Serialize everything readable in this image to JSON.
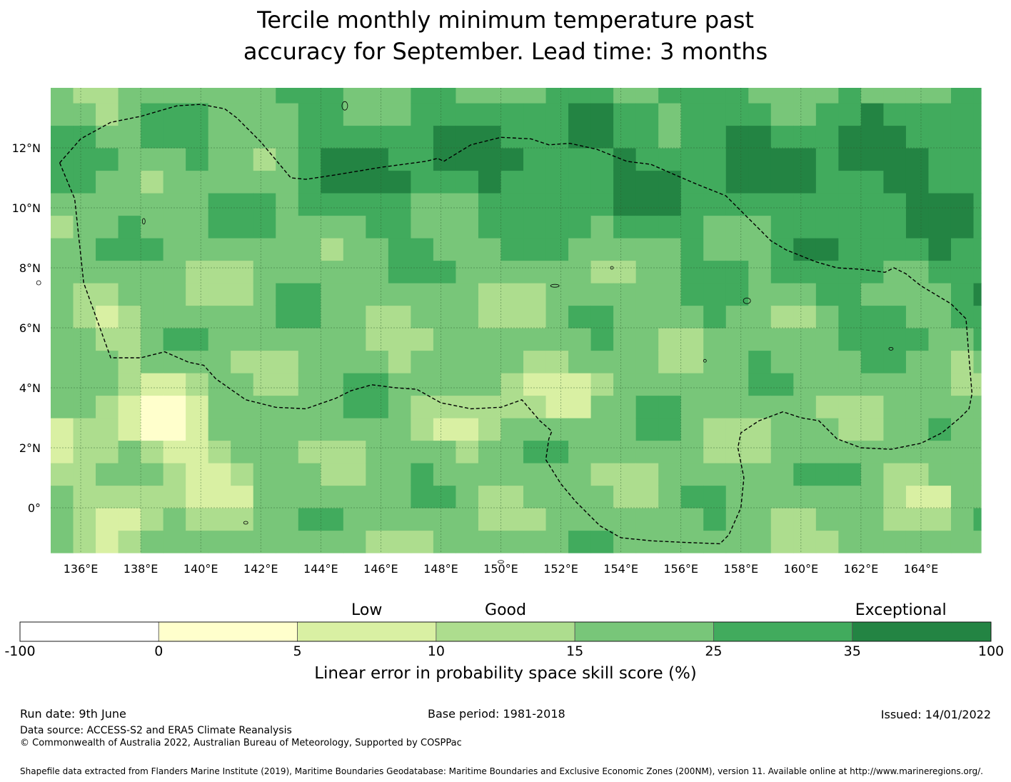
{
  "title_line1": "Tercile monthly minimum temperature past",
  "title_line2": "accuracy for September. Lead time: 3 months",
  "map": {
    "lon_range": [
      135.0,
      166.0
    ],
    "lat_range": [
      -1.5,
      14.0
    ],
    "x_ticks": [
      {
        "lon": 136,
        "label": "136°E"
      },
      {
        "lon": 138,
        "label": "138°E"
      },
      {
        "lon": 140,
        "label": "140°E"
      },
      {
        "lon": 142,
        "label": "142°E"
      },
      {
        "lon": 144,
        "label": "144°E"
      },
      {
        "lon": 146,
        "label": "146°E"
      },
      {
        "lon": 148,
        "label": "148°E"
      },
      {
        "lon": 150,
        "label": "150°E"
      },
      {
        "lon": 152,
        "label": "152°E"
      },
      {
        "lon": 154,
        "label": "154°E"
      },
      {
        "lon": 156,
        "label": "156°E"
      },
      {
        "lon": 158,
        "label": "158°E"
      },
      {
        "lon": 160,
        "label": "160°E"
      },
      {
        "lon": 162,
        "label": "162°E"
      },
      {
        "lon": 164,
        "label": "164°E"
      }
    ],
    "y_ticks": [
      {
        "lat": 12,
        "label": "12°N"
      },
      {
        "lat": 10,
        "label": "10°N"
      },
      {
        "lat": 8,
        "label": "8°N"
      },
      {
        "lat": 6,
        "label": "6°N"
      },
      {
        "lat": 4,
        "label": "4°N"
      },
      {
        "lat": 2,
        "label": "2°N"
      },
      {
        "lat": 0,
        "label": "0°"
      }
    ],
    "eez_boundary": [
      [
        135.3,
        11.5
      ],
      [
        136.0,
        12.3
      ],
      [
        137.0,
        12.85
      ],
      [
        138.0,
        13.05
      ],
      [
        139.2,
        13.4
      ],
      [
        140.0,
        13.45
      ],
      [
        140.8,
        13.3
      ],
      [
        141.2,
        13.0
      ],
      [
        142.0,
        12.2
      ],
      [
        143.0,
        11.0
      ],
      [
        143.5,
        10.95
      ],
      [
        144.5,
        11.1
      ],
      [
        146.0,
        11.35
      ],
      [
        147.5,
        11.55
      ],
      [
        147.9,
        11.65
      ],
      [
        148.1,
        11.55
      ],
      [
        149.0,
        12.1
      ],
      [
        150.0,
        12.35
      ],
      [
        151.0,
        12.3
      ],
      [
        151.6,
        12.1
      ],
      [
        152.3,
        12.15
      ],
      [
        153.2,
        11.95
      ],
      [
        154.2,
        11.55
      ],
      [
        155.0,
        11.45
      ],
      [
        155.8,
        11.1
      ],
      [
        156.5,
        10.8
      ],
      [
        157.0,
        10.6
      ],
      [
        157.5,
        10.4
      ],
      [
        158.0,
        9.9
      ],
      [
        158.5,
        9.4
      ],
      [
        159.0,
        8.9
      ],
      [
        159.5,
        8.6
      ],
      [
        160.5,
        8.2
      ],
      [
        161.2,
        8.0
      ],
      [
        162.0,
        7.95
      ],
      [
        162.8,
        7.85
      ],
      [
        163.1,
        8.0
      ],
      [
        163.5,
        7.8
      ],
      [
        164.0,
        7.4
      ],
      [
        165.0,
        6.8
      ],
      [
        165.5,
        6.3
      ],
      [
        165.6,
        5.0
      ],
      [
        165.7,
        3.8
      ],
      [
        165.6,
        3.3
      ],
      [
        165.3,
        3.0
      ],
      [
        164.7,
        2.5
      ],
      [
        164.0,
        2.15
      ],
      [
        163.0,
        1.95
      ],
      [
        162.0,
        2.0
      ],
      [
        161.2,
        2.3
      ],
      [
        160.6,
        2.9
      ],
      [
        160.0,
        3.0
      ],
      [
        159.4,
        3.2
      ],
      [
        158.6,
        2.9
      ],
      [
        158.0,
        2.5
      ],
      [
        157.9,
        2.0
      ],
      [
        158.1,
        1.0
      ],
      [
        158.0,
        0.0
      ],
      [
        157.6,
        -0.9
      ],
      [
        157.3,
        -1.2
      ],
      [
        156.0,
        -1.15
      ],
      [
        155.0,
        -1.1
      ],
      [
        154.0,
        -1.0
      ],
      [
        153.3,
        -0.6
      ],
      [
        152.5,
        0.2
      ],
      [
        152.0,
        0.8
      ],
      [
        151.5,
        1.6
      ],
      [
        151.6,
        2.3
      ],
      [
        151.7,
        2.55
      ],
      [
        151.3,
        2.9
      ],
      [
        150.7,
        3.6
      ],
      [
        150.0,
        3.35
      ],
      [
        149.0,
        3.3
      ],
      [
        148.0,
        3.5
      ],
      [
        147.2,
        3.95
      ],
      [
        146.5,
        4.0
      ],
      [
        145.7,
        4.1
      ],
      [
        145.0,
        3.9
      ],
      [
        144.5,
        3.65
      ],
      [
        143.5,
        3.3
      ],
      [
        142.5,
        3.35
      ],
      [
        141.5,
        3.6
      ],
      [
        140.5,
        4.3
      ],
      [
        140.1,
        4.75
      ],
      [
        139.6,
        4.85
      ],
      [
        138.8,
        5.2
      ],
      [
        138.0,
        5.0
      ],
      [
        137.0,
        5.0
      ],
      [
        136.1,
        7.5
      ],
      [
        135.8,
        10.3
      ],
      [
        135.3,
        11.5
      ]
    ]
  },
  "colorbar": {
    "category_labels": [
      {
        "text": "Low",
        "at": 2.5
      },
      {
        "text": "Good",
        "at": 3.5
      },
      {
        "text": "Exceptional",
        "at": 6.35
      }
    ],
    "bins": [
      {
        "from": "-100",
        "to": "0",
        "color": "#ffffff"
      },
      {
        "from": "0",
        "to": "5",
        "color": "#ffffcc"
      },
      {
        "from": "5",
        "to": "10",
        "color": "#d9f0a3"
      },
      {
        "from": "10",
        "to": "15",
        "color": "#addd8e"
      },
      {
        "from": "15",
        "to": "25",
        "color": "#78c679"
      },
      {
        "from": "25",
        "to": "35",
        "color": "#41ab5d"
      },
      {
        "from": "35",
        "to": "100",
        "color": "#238443"
      }
    ],
    "ticks": [
      "-100",
      "0",
      "5",
      "10",
      "15",
      "25",
      "35",
      "100"
    ],
    "axis_label": "Linear error in probability space skill score (%)"
  },
  "footer": {
    "run_date": "Run date: 9th June",
    "base_period": "Base period: 1981-2018",
    "issued": "Issued: 14/01/2022",
    "data_source": "Data source: ACCESS-S2 and ERA5 Climate Reanalysis",
    "copyright": "© Commonwealth of Australia 2022, Australian Bureau of Meteorology, Supported by COSPPac",
    "shapefile": "Shapefile data extracted from Flanders Marine Institute (2019), Maritime Boundaries Geodatabase: Maritime Boundaries and Exclusive Economic Zones (200NM), version 11. Available online at http://www.marineregions.org/."
  }
}
